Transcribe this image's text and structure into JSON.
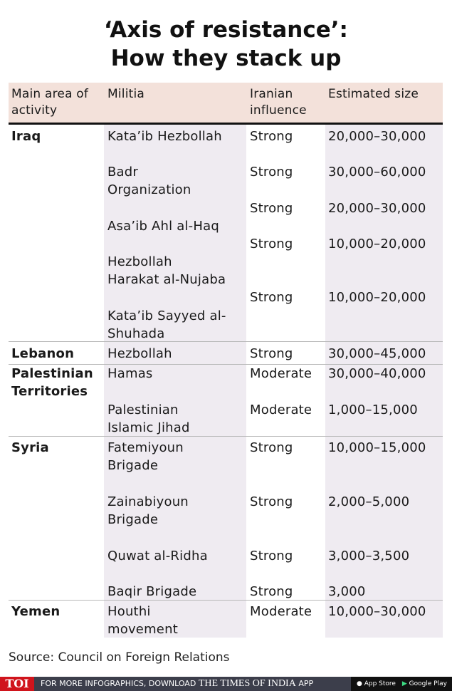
{
  "title": [
    "‘Axis of resistance’:",
    "How they stack up"
  ],
  "table": {
    "headers": [
      "Main area of\nactivity",
      "Militia",
      "Iranian\ninfluence",
      "Estimated size"
    ],
    "groups": [
      {
        "area": "Iraq",
        "rows": [
          {
            "militia": "Kata’ib Hezbollah",
            "influence": "Strong",
            "size": "20,000–30,000"
          },
          {
            "militia": "Badr\nOrganization",
            "influence": "Strong",
            "size": "30,000–60,000"
          },
          {
            "militia": "Asa’ib Ahl al-Haq",
            "influence": "Strong",
            "size": "20,000–30,000"
          },
          {
            "militia": "Hezbollah\nHarakat al-Nujaba",
            "influence": "Strong",
            "size": "10,000–20,000"
          },
          {
            "militia": "Kata’ib Sayyed al-\nShuhada",
            "influence": "Strong",
            "size": "10,000–20,000"
          }
        ]
      },
      {
        "area": "Lebanon",
        "rows": [
          {
            "militia": "Hezbollah",
            "influence": "Strong",
            "size": "30,000–45,000"
          }
        ]
      },
      {
        "area": "Palestinian\nTerritories",
        "rows": [
          {
            "militia": "Hamas",
            "influence": "Moderate",
            "size": "30,000–40,000"
          },
          {
            "militia": "Palestinian\nIslamic Jihad",
            "influence": "Moderate",
            "size": "1,000–15,000"
          }
        ]
      },
      {
        "area": "Syria",
        "rows": [
          {
            "militia": "Fatemiyoun\nBrigade",
            "influence": "Strong",
            "size": "10,000–15,000"
          },
          {
            "militia": "Zainabiyoun\nBrigade",
            "influence": "Strong",
            "size": "2,000–5,000"
          },
          {
            "militia": "Quwat al-Ridha",
            "influence": "Strong",
            "size": "3,000–3,500"
          },
          {
            "militia": "Baqir Brigade",
            "influence": "Strong",
            "size": "3,000"
          }
        ]
      },
      {
        "area": "Yemen",
        "rows": [
          {
            "militia": "Houthi\nmovement",
            "influence": "Moderate",
            "size": "10,000–30,000"
          }
        ]
      }
    ]
  },
  "source": "Source: Council on Foreign Relations",
  "footer": {
    "logo": "TOI",
    "promo": "FOR MORE INFOGRAPHICS, DOWNLOAD",
    "brand": "THE TIMES OF INDIA",
    "app": "APP",
    "app_store": "App Store",
    "google_play": "Google Play"
  },
  "colors": {
    "header_bg": "#f3e1da",
    "column_bg": "#efebf1",
    "footer_bg": "#3c3e4b",
    "logo_red": "#d0141c"
  }
}
